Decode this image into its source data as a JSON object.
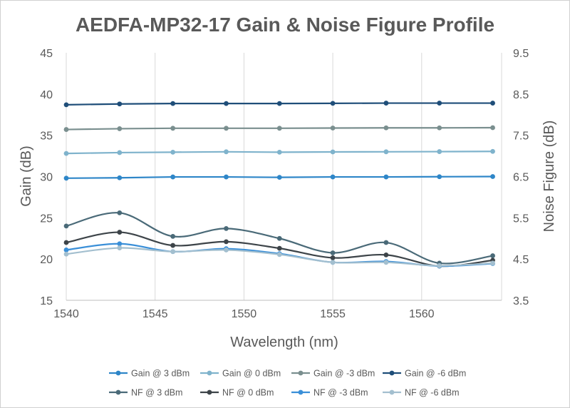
{
  "chart_data": {
    "type": "line",
    "title": "AEDFA-MP32-17 Gain & Noise Figure Profile",
    "xlabel": "Wavelength (nm)",
    "ylabel": "Gain (dB)",
    "y2label": "Noise Figure (dB)",
    "xlim": [
      1540,
      1564.5
    ],
    "ylim": [
      15,
      45
    ],
    "y2lim": [
      3.5,
      9.5
    ],
    "x_ticks": [
      1540,
      1545,
      1550,
      1555,
      1560
    ],
    "y_ticks": [
      15,
      20,
      25,
      30,
      35,
      40,
      45
    ],
    "y2_ticks": [
      3.5,
      4.5,
      5.5,
      6.5,
      7.5,
      8.5,
      9.5
    ],
    "grid": "vertical",
    "legend": "bottom",
    "x": [
      1540,
      1543,
      1546,
      1549,
      1552,
      1555,
      1558,
      1561,
      1564
    ],
    "series": [
      {
        "name": "Gain @ 3 dBm",
        "axis": "left",
        "color": "#2e86c8",
        "smooth": false,
        "values": [
          29.8,
          29.85,
          29.95,
          29.95,
          29.9,
          29.95,
          29.95,
          29.98,
          30.0
        ]
      },
      {
        "name": "Gain @ 0 dBm",
        "axis": "left",
        "color": "#7fb3cc",
        "smooth": false,
        "values": [
          32.8,
          32.9,
          32.95,
          33.0,
          32.95,
          32.98,
          33.0,
          33.02,
          33.05
        ]
      },
      {
        "name": "Gain @ -3 dBm",
        "axis": "left",
        "color": "#7a8f8f",
        "smooth": false,
        "values": [
          35.7,
          35.8,
          35.85,
          35.85,
          35.85,
          35.88,
          35.9,
          35.9,
          35.92
        ]
      },
      {
        "name": "Gain @ -6 dBm",
        "axis": "left",
        "color": "#1f4e79",
        "smooth": false,
        "values": [
          38.7,
          38.8,
          38.85,
          38.85,
          38.85,
          38.87,
          38.9,
          38.9,
          38.9
        ]
      },
      {
        "name": "NF @ 3 dBm",
        "axis": "right",
        "color": "#4a6a78",
        "smooth": true,
        "values": [
          5.3,
          5.62,
          5.05,
          5.24,
          5.0,
          4.65,
          4.9,
          4.4,
          4.58
        ]
      },
      {
        "name": "NF @ 0 dBm",
        "axis": "right",
        "color": "#3d4449",
        "smooth": true,
        "values": [
          4.9,
          5.15,
          4.83,
          4.92,
          4.76,
          4.53,
          4.6,
          4.33,
          4.47
        ]
      },
      {
        "name": "NF @ -3 dBm",
        "axis": "right",
        "color": "#3a8fd8",
        "smooth": true,
        "values": [
          4.72,
          4.87,
          4.68,
          4.75,
          4.63,
          4.42,
          4.44,
          4.33,
          4.39
        ]
      },
      {
        "name": "NF @ -6 dBm",
        "axis": "right",
        "color": "#a3bfcf",
        "smooth": true,
        "values": [
          4.62,
          4.77,
          4.68,
          4.72,
          4.61,
          4.42,
          4.42,
          4.34,
          4.4
        ]
      }
    ]
  }
}
